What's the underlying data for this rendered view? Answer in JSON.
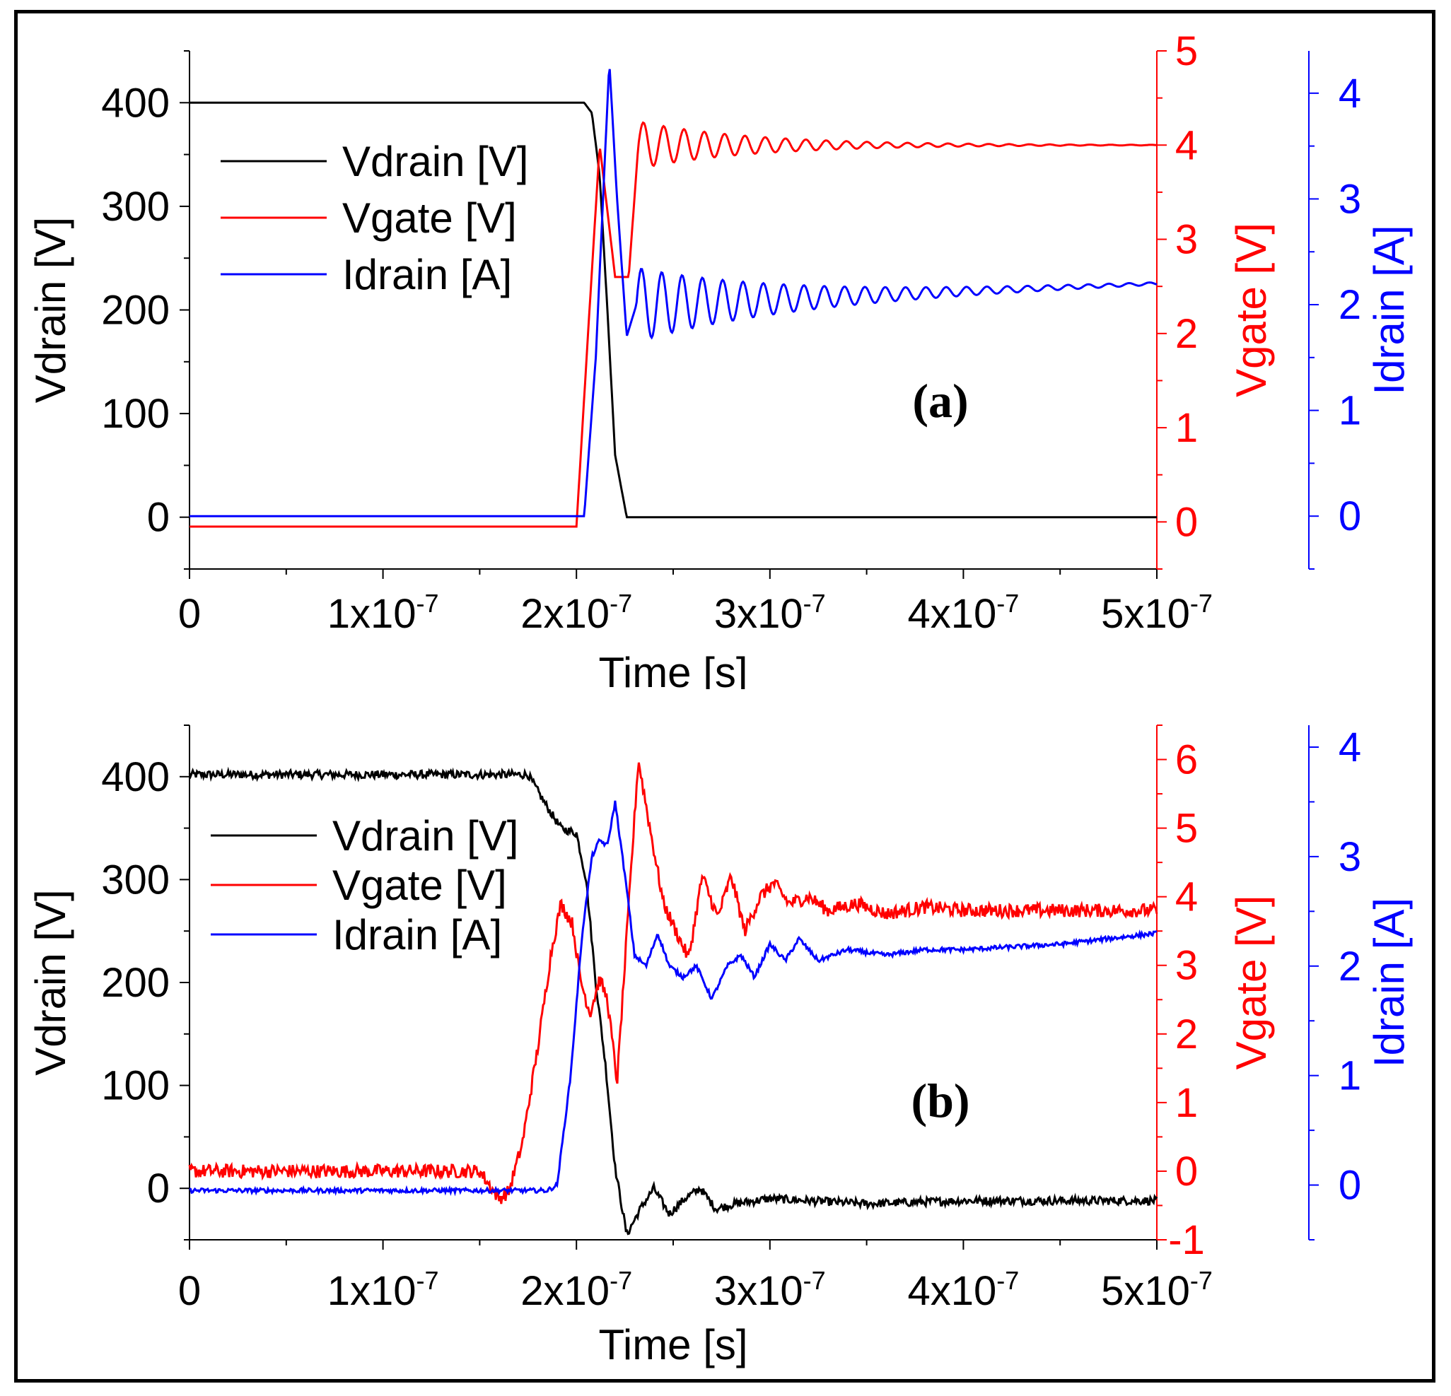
{
  "colors": {
    "vdrain": "#000000",
    "vgate": "#ff0000",
    "idrain": "#0000ff"
  },
  "chart_data": [
    {
      "type": "line",
      "panel_label": "(a)",
      "xlabel": "Time [s]",
      "ylabel_left": "Vdrain [V]",
      "ylabel_right1": "Vgate [V]",
      "ylabel_right2": "Idrain [A]",
      "xlim": [
        0,
        5e-07
      ],
      "ylim_left": [
        -50,
        450
      ],
      "ylim_right1": [
        -0.5,
        5
      ],
      "ylim_right2": [
        -0.5,
        4.4
      ],
      "x_ticks": [
        {
          "base": "0",
          "exp": ""
        },
        {
          "base": "1x10",
          "exp": "-7"
        },
        {
          "base": "2x10",
          "exp": "-7"
        },
        {
          "base": "3x10",
          "exp": "-7"
        },
        {
          "base": "4x10",
          "exp": "-7"
        },
        {
          "base": "5x10",
          "exp": "-7"
        }
      ],
      "x_tick_values": [
        0,
        1e-07,
        2e-07,
        3e-07,
        4e-07,
        5e-07
      ],
      "y_ticks_left": [
        0,
        100,
        200,
        300,
        400
      ],
      "y_ticks_right1": [
        0,
        1,
        2,
        3,
        4,
        5
      ],
      "y_ticks_right2": [
        0,
        1,
        2,
        3,
        4
      ],
      "legend": [
        "Vdrain [V]",
        "Vgate [V]",
        "Idrain [A]"
      ],
      "series": [
        {
          "name": "Vdrain [V]",
          "axis": "left",
          "color": "#000000",
          "x": [
            0,
            2.04e-07,
            2.08e-07,
            2.12e-07,
            2.16e-07,
            2.2e-07,
            2.26e-07,
            5e-07
          ],
          "y": [
            400,
            400,
            390,
            330,
            200,
            60,
            0,
            0
          ]
        },
        {
          "name": "Vgate [V]",
          "axis": "right1",
          "color": "#ff0000",
          "x": [
            0,
            2e-07,
            2.06e-07,
            2.12e-07,
            2.2e-07,
            2.27e-07,
            2.32e-07,
            5e-07
          ],
          "y": [
            -0.05,
            -0.05,
            2.0,
            4.0,
            2.6,
            2.6,
            4.0,
            4.0
          ],
          "ringing": {
            "start": 2.32e-07,
            "amplitude": 0.25,
            "period": 1.05e-08,
            "decay": 6e-08
          }
        },
        {
          "name": "Idrain [A]",
          "axis": "right2",
          "color": "#0000ff",
          "x": [
            0,
            2.04e-07,
            2.1e-07,
            2.17e-07,
            2.21e-07,
            2.26e-07,
            2.31e-07,
            5e-07
          ],
          "y": [
            0.0,
            0.0,
            1.5,
            4.3,
            3.0,
            1.7,
            2.0,
            2.2
          ],
          "ringing": {
            "start": 2.31e-07,
            "amplitude": 0.35,
            "period": 1.05e-08,
            "decay": 8e-08
          }
        }
      ]
    },
    {
      "type": "line",
      "panel_label": "(b)",
      "xlabel": "Time [s]",
      "ylabel_left": "Vdrain [V]",
      "ylabel_right1": "Vgate [V]",
      "ylabel_right2": "Idrain [A]",
      "xlim": [
        0,
        5e-07
      ],
      "ylim_left": [
        -50,
        450
      ],
      "ylim_right1": [
        -1,
        6.5
      ],
      "ylim_right2": [
        -0.5,
        4.2
      ],
      "x_ticks": [
        {
          "base": "0",
          "exp": ""
        },
        {
          "base": "1x10",
          "exp": "-7"
        },
        {
          "base": "2x10",
          "exp": "-7"
        },
        {
          "base": "3x10",
          "exp": "-7"
        },
        {
          "base": "4x10",
          "exp": "-7"
        },
        {
          "base": "5x10",
          "exp": "-7"
        }
      ],
      "x_tick_values": [
        0,
        1e-07,
        2e-07,
        3e-07,
        4e-07,
        5e-07
      ],
      "y_ticks_left": [
        0,
        100,
        200,
        300,
        400
      ],
      "y_ticks_right1": [
        -1,
        0,
        1,
        2,
        3,
        4,
        5,
        6
      ],
      "y_ticks_right2": [
        0,
        1,
        2,
        3,
        4
      ],
      "legend": [
        "Vdrain [V]",
        "Vgate [V]",
        "Idrain [A]"
      ],
      "series": [
        {
          "name": "Vdrain [V]",
          "axis": "left",
          "color": "#000000",
          "x": [
            0,
            1.75e-07,
            1.85e-07,
            1.92e-07,
            2e-07,
            2.05e-07,
            2.1e-07,
            2.15e-07,
            2.2e-07,
            2.26e-07,
            2.33e-07,
            2.4e-07,
            2.48e-07,
            2.56e-07,
            2.64e-07,
            2.72e-07,
            2.82e-07,
            3e-07,
            3.5e-07,
            4e-07,
            5e-07
          ],
          "y": [
            402,
            402,
            370,
            350,
            345,
            300,
            200,
            120,
            20,
            -45,
            -20,
            0,
            -25,
            -10,
            0,
            -20,
            -15,
            -10,
            -15,
            -12,
            -12
          ],
          "noise": 4
        },
        {
          "name": "Vgate [V]",
          "axis": "right1",
          "color": "#ff0000",
          "x": [
            0,
            1.5e-07,
            1.6e-07,
            1.65e-07,
            1.72e-07,
            1.8e-07,
            1.87e-07,
            1.92e-07,
            1.98e-07,
            2.02e-07,
            2.07e-07,
            2.12e-07,
            2.16e-07,
            2.21e-07,
            2.25e-07,
            2.32e-07,
            2.38e-07,
            2.45e-07,
            2.53e-07,
            2.58e-07,
            2.65e-07,
            2.73e-07,
            2.8e-07,
            2.87e-07,
            2.95e-07,
            3.02e-07,
            3.1e-07,
            3.2e-07,
            3.3e-07,
            3.45e-07,
            3.6e-07,
            3.8e-07,
            4e-07,
            5e-07
          ],
          "y": [
            0.0,
            0.0,
            -0.4,
            -0.3,
            0.4,
            1.8,
            3.2,
            3.9,
            3.6,
            2.8,
            2.3,
            2.8,
            2.5,
            1.3,
            3.0,
            6.0,
            5.0,
            3.9,
            3.4,
            3.1,
            4.3,
            3.7,
            4.3,
            3.5,
            4.0,
            4.2,
            3.9,
            4.0,
            3.8,
            3.9,
            3.75,
            3.85,
            3.8,
            3.8
          ],
          "noise": 0.1
        },
        {
          "name": "Idrain [A]",
          "axis": "right2",
          "color": "#0000ff",
          "x": [
            0,
            1.85e-07,
            1.9e-07,
            1.97e-07,
            2.03e-07,
            2.08e-07,
            2.12e-07,
            2.16e-07,
            2.2e-07,
            2.26e-07,
            2.3e-07,
            2.36e-07,
            2.42e-07,
            2.48e-07,
            2.55e-07,
            2.62e-07,
            2.7e-07,
            2.78e-07,
            2.85e-07,
            2.92e-07,
            3e-07,
            3.08e-07,
            3.15e-07,
            3.25e-07,
            3.4e-07,
            3.6e-07,
            3.8e-07,
            4e-07,
            4.5e-07,
            5e-07
          ],
          "y": [
            -0.05,
            -0.05,
            0.0,
            1.0,
            2.3,
            3.0,
            3.15,
            3.1,
            3.5,
            2.7,
            2.1,
            2.0,
            2.3,
            2.0,
            1.9,
            2.0,
            1.7,
            2.0,
            2.1,
            1.9,
            2.2,
            2.05,
            2.25,
            2.05,
            2.15,
            2.1,
            2.15,
            2.15,
            2.2,
            2.3
          ],
          "noise": 0.02
        }
      ]
    }
  ]
}
